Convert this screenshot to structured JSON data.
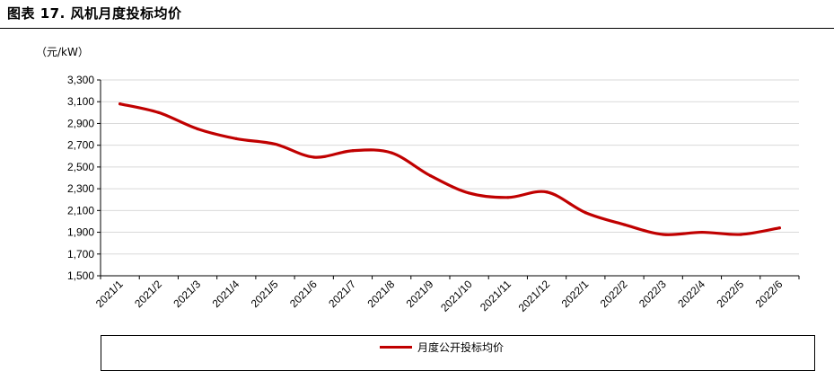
{
  "figure": {
    "title": "图表 17. 风机月度投标均价"
  },
  "chart_data": {
    "type": "line",
    "title": "",
    "ylabel": "（元/kW）",
    "xlabel": "",
    "ylim": [
      1500,
      3300
    ],
    "yticks": [
      1500,
      1700,
      1900,
      2100,
      2300,
      2500,
      2700,
      2900,
      3100,
      3300
    ],
    "yticklabels": [
      "1,500",
      "1,700",
      "1,900",
      "2,100",
      "2,300",
      "2,500",
      "2,700",
      "2,900",
      "3,100",
      "3,300"
    ],
    "x": [
      "2021/1",
      "2021/2",
      "2021/3",
      "2021/4",
      "2021/5",
      "2021/6",
      "2021/7",
      "2021/8",
      "2021/9",
      "2021/10",
      "2021/11",
      "2021/12",
      "2022/1",
      "2022/2",
      "2022/3",
      "2022/4",
      "2022/5",
      "2022/6"
    ],
    "series": [
      {
        "name": "月度公开投标均价",
        "color": "#c00000",
        "values": [
          3080,
          3000,
          2850,
          2760,
          2710,
          2590,
          2650,
          2630,
          2420,
          2260,
          2220,
          2270,
          2080,
          1970,
          1880,
          1900,
          1880,
          1940
        ]
      }
    ],
    "grid": "horizontal",
    "legend": "bottom"
  }
}
